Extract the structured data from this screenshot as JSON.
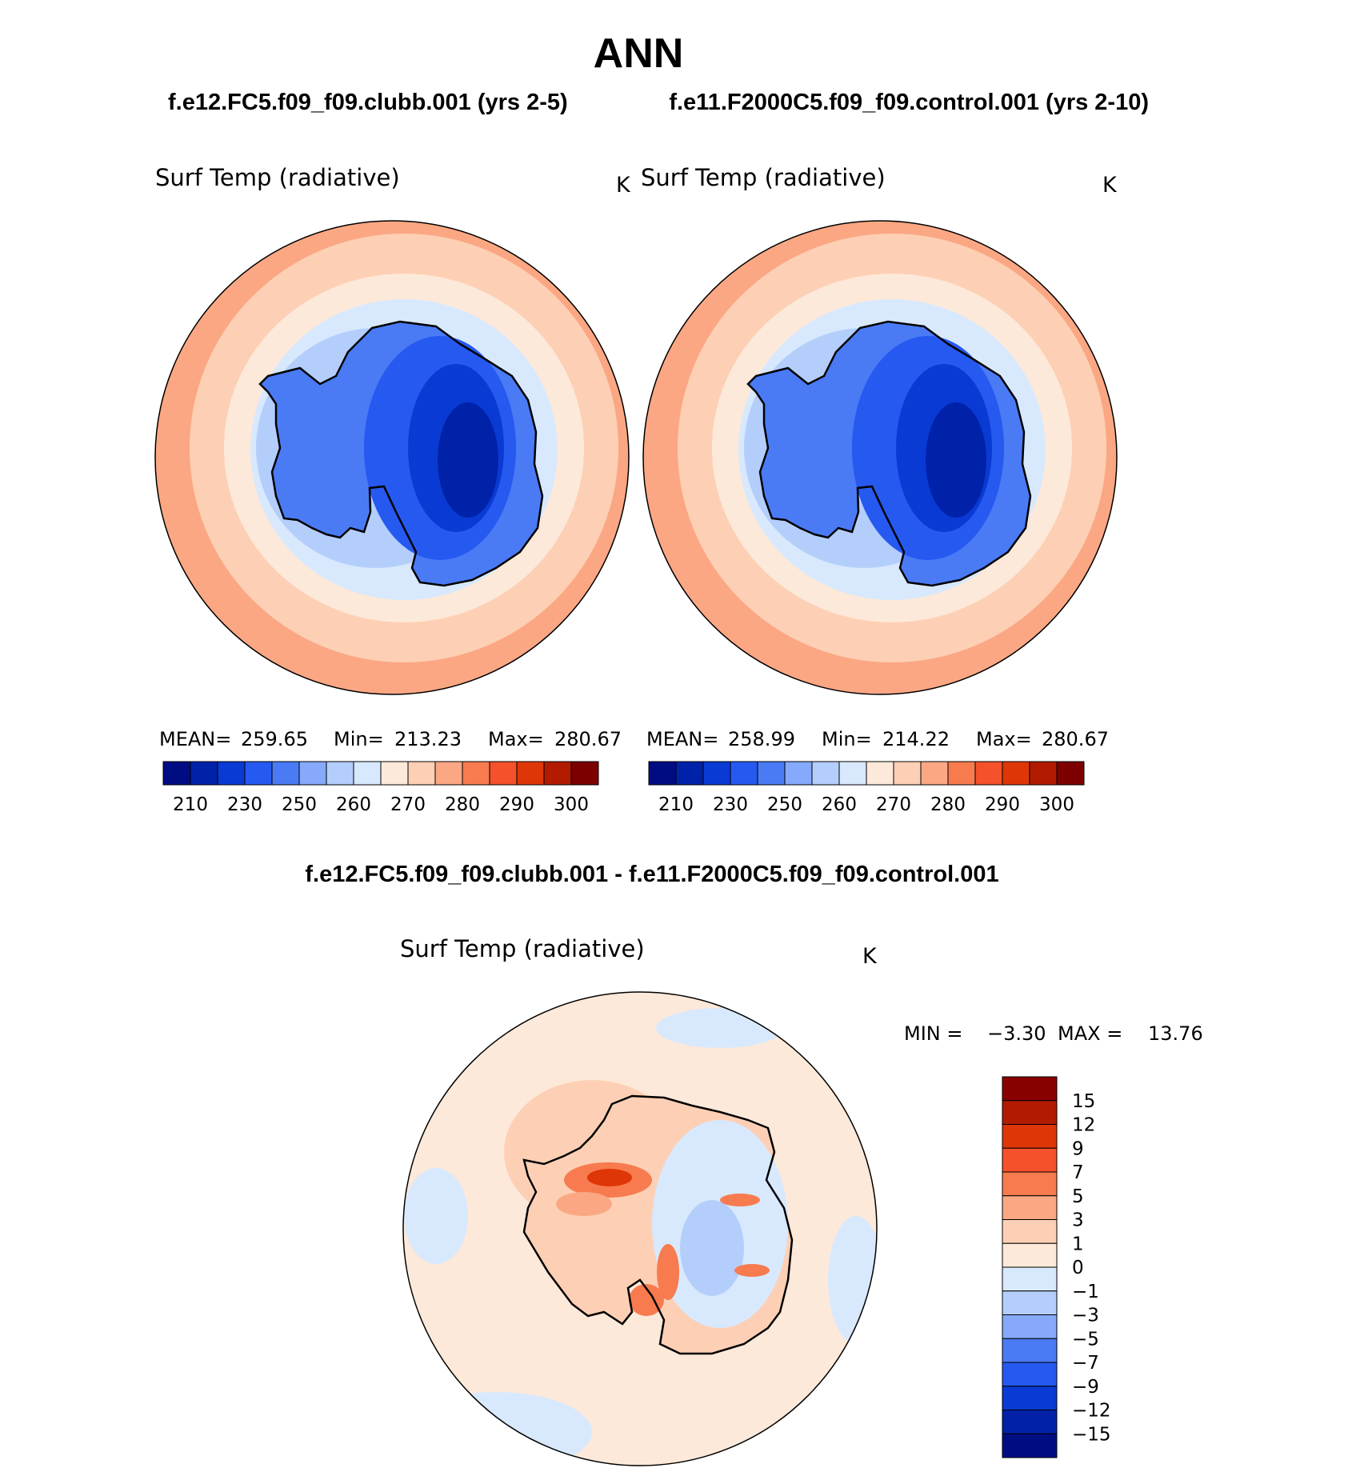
{
  "figure": {
    "season": "ANN",
    "case1_header": "f.e12.FC5.f09_f09.clubb.001 (yrs 2-5)",
    "case2_header": "f.e11.F2000C5.f09_f09.control.001 (yrs 2-10)",
    "diff_header": "f.e12.FC5.f09_f09.clubb.001 - f.e11.F2000C5.f09_f09.control.001"
  },
  "panels": [
    {
      "variable": "Surf Temp (radiative)",
      "units": "K",
      "stats": {
        "mean_label": "MEAN=",
        "mean": "259.65",
        "min_label": "Min=",
        "min": "213.23",
        "max_label": "Max=",
        "max": "280.67"
      }
    },
    {
      "variable": "Surf Temp (radiative)",
      "units": "K",
      "stats": {
        "mean_label": "MEAN=",
        "mean": "258.99",
        "min_label": "Min=",
        "min": "214.22",
        "max_label": "Max=",
        "max": "280.67"
      }
    }
  ],
  "diff_panel": {
    "variable": "Surf Temp (radiative)",
    "units": "K",
    "min_label": "MIN =",
    "min": "−3.30",
    "max_label": "MAX =",
    "max": "13.76"
  },
  "colorbar_abs": {
    "tick_labels": [
      "210",
      "230",
      "250",
      "260",
      "270",
      "280",
      "290",
      "300"
    ],
    "colors": [
      "#000d82",
      "#0022a8",
      "#0a3ad4",
      "#2659f0",
      "#4a7bf5",
      "#86a9fc",
      "#b4cefc",
      "#d8e9fd",
      "#fde9d9",
      "#fdd0b5",
      "#fba784",
      "#f77b4e",
      "#f5512a",
      "#df3608",
      "#b21b00",
      "#7d0000"
    ]
  },
  "colorbar_diff": {
    "tick_labels": [
      "15",
      "12",
      "9",
      "7",
      "5",
      "3",
      "1",
      "0",
      "−1",
      "−3",
      "−5",
      "−7",
      "−9",
      "−12",
      "−15"
    ],
    "colors": [
      "#890000",
      "#b21b00",
      "#df3608",
      "#f5512a",
      "#f77b4e",
      "#fba784",
      "#fdd0b5",
      "#fde9d9",
      "#d8e9fd",
      "#b4cefc",
      "#86a9fc",
      "#4a7bf5",
      "#2659f0",
      "#0a3ad4",
      "#0022a8",
      "#000d82"
    ]
  }
}
